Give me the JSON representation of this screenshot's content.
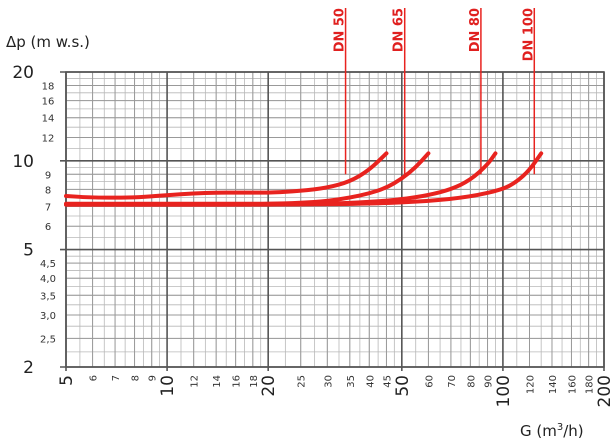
{
  "chart_data": {
    "type": "line",
    "ylabel": "Δp (m w.s.)",
    "xlabel_main": "G (m",
    "xlabel_sup": "3",
    "xlabel_end": "/h)",
    "x_scale": "log",
    "y_scale": "log",
    "xlim": [
      5,
      200
    ],
    "ylim": [
      2,
      20
    ],
    "grid": true,
    "x_ticks": [
      {
        "value": 5,
        "label": "5",
        "major": true
      },
      {
        "value": 6,
        "label": "6",
        "major": false
      },
      {
        "value": 7,
        "label": "7",
        "major": false
      },
      {
        "value": 8,
        "label": "8",
        "major": false
      },
      {
        "value": 9,
        "label": "9",
        "major": false
      },
      {
        "value": 10,
        "label": "10",
        "major": true
      },
      {
        "value": 12,
        "label": "12",
        "major": false
      },
      {
        "value": 14,
        "label": "14",
        "major": false
      },
      {
        "value": 16,
        "label": "16",
        "major": false
      },
      {
        "value": 18,
        "label": "18",
        "major": false
      },
      {
        "value": 20,
        "label": "20",
        "major": true
      },
      {
        "value": 25,
        "label": "25",
        "major": false
      },
      {
        "value": 30,
        "label": "30",
        "major": false
      },
      {
        "value": 35,
        "label": "35",
        "major": false
      },
      {
        "value": 40,
        "label": "40",
        "major": false
      },
      {
        "value": 45,
        "label": "45",
        "major": false
      },
      {
        "value": 50,
        "label": "50",
        "major": true
      },
      {
        "value": 60,
        "label": "60",
        "major": false
      },
      {
        "value": 70,
        "label": "70",
        "major": false
      },
      {
        "value": 80,
        "label": "80",
        "major": false
      },
      {
        "value": 90,
        "label": "90",
        "major": false
      },
      {
        "value": 100,
        "label": "100",
        "major": true
      },
      {
        "value": 120,
        "label": "120",
        "major": false
      },
      {
        "value": 140,
        "label": "140",
        "major": false
      },
      {
        "value": 160,
        "label": "160",
        "major": false
      },
      {
        "value": 180,
        "label": "180",
        "major": false
      },
      {
        "value": 200,
        "label": "200",
        "major": true
      }
    ],
    "y_ticks": [
      {
        "value": 2,
        "label": "2",
        "major": true
      },
      {
        "value": 2.5,
        "label": "2,5",
        "major": false
      },
      {
        "value": 3,
        "label": "3,0",
        "major": false
      },
      {
        "value": 3.5,
        "label": "3,5",
        "major": false
      },
      {
        "value": 4,
        "label": "4,0",
        "major": false
      },
      {
        "value": 4.5,
        "label": "4,5",
        "major": false
      },
      {
        "value": 5,
        "label": "5",
        "major": true
      },
      {
        "value": 6,
        "label": "6",
        "major": false
      },
      {
        "value": 7,
        "label": "7",
        "major": false
      },
      {
        "value": 8,
        "label": "8",
        "major": false
      },
      {
        "value": 9,
        "label": "9",
        "major": false
      },
      {
        "value": 10,
        "label": "10",
        "major": true
      },
      {
        "value": 12,
        "label": "12",
        "major": false
      },
      {
        "value": 14,
        "label": "14",
        "major": false
      },
      {
        "value": 16,
        "label": "16",
        "major": false
      },
      {
        "value": 18,
        "label": "18",
        "major": false
      },
      {
        "value": 20,
        "label": "20",
        "major": true
      }
    ],
    "series": [
      {
        "name": "DN 50",
        "x": [
          5,
          6,
          8,
          10,
          12,
          14,
          16,
          18,
          20,
          25,
          30,
          35,
          40,
          45
        ],
        "y": [
          7.6,
          7.5,
          7.5,
          7.65,
          7.75,
          7.8,
          7.8,
          7.8,
          7.8,
          7.9,
          8.1,
          8.5,
          9.3,
          10.6
        ],
        "label_x": 34
      },
      {
        "name": "DN 65",
        "x": [
          5,
          8,
          10,
          15,
          20,
          25,
          30,
          35,
          40,
          45,
          50,
          55,
          60
        ],
        "y": [
          7.15,
          7.15,
          7.15,
          7.15,
          7.15,
          7.2,
          7.3,
          7.5,
          7.75,
          8.1,
          8.7,
          9.5,
          10.6
        ],
        "label_x": 51
      },
      {
        "name": "DN 80",
        "x": [
          5,
          10,
          20,
          30,
          40,
          50,
          60,
          70,
          80,
          90,
          95
        ],
        "y": [
          7.1,
          7.1,
          7.1,
          7.15,
          7.25,
          7.4,
          7.65,
          8.0,
          8.6,
          9.7,
          10.6
        ],
        "label_x": 86
      },
      {
        "name": "DN 100",
        "x": [
          5,
          10,
          20,
          40,
          60,
          80,
          100,
          110,
          120,
          130
        ],
        "y": [
          7.1,
          7.1,
          7.1,
          7.15,
          7.3,
          7.55,
          8.0,
          8.5,
          9.3,
          10.6
        ],
        "label_x": 124
      }
    ],
    "series_color": "#e8231f"
  }
}
